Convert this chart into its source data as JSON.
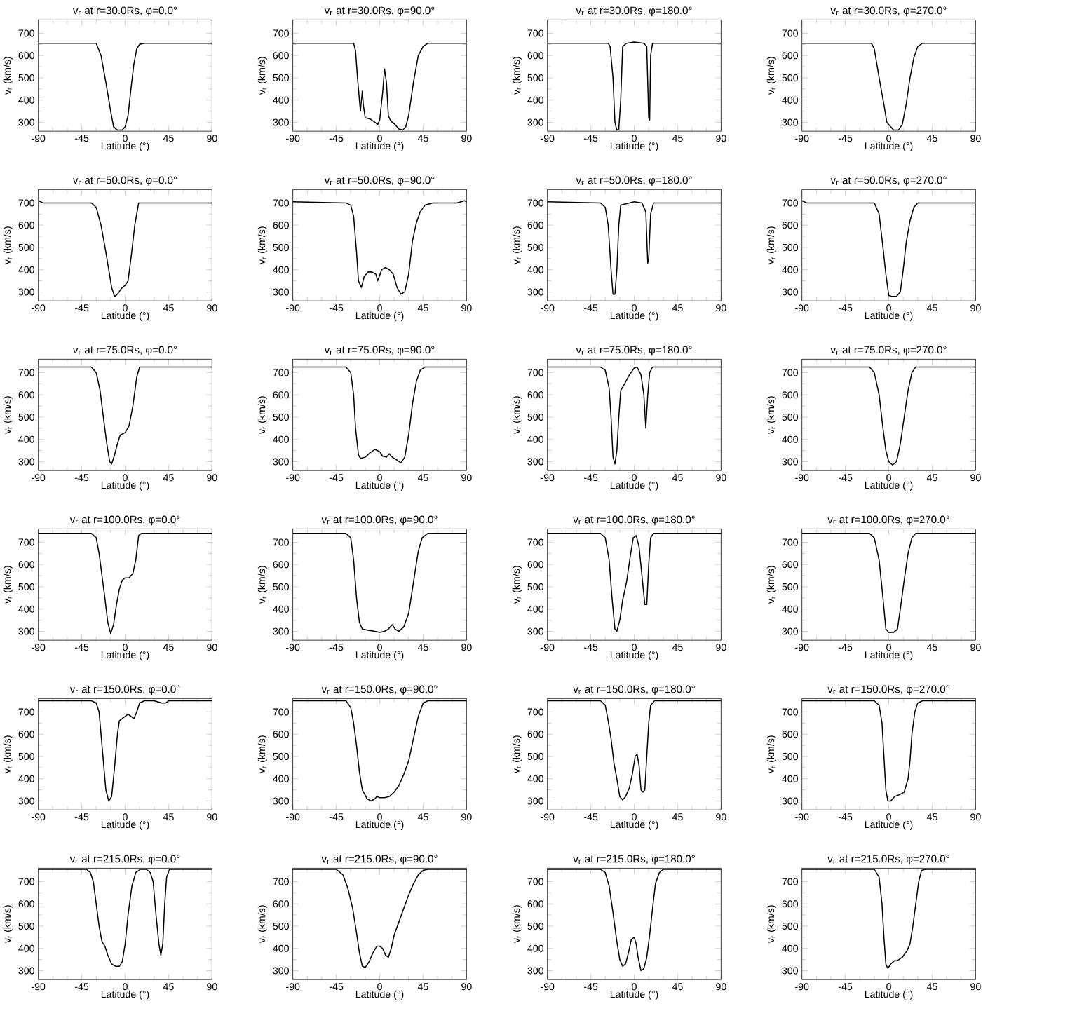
{
  "chart_data": [
    {
      "type": "line",
      "title": "v$_{r}$ at r=30.0Rs, φ=0.0°",
      "xlabel": "Latitude (°)",
      "ylabel": "v$_{r}$ (km/s)",
      "color": "#000000",
      "xlim": [
        -90,
        90
      ],
      "xticks": [
        -90,
        -45,
        0,
        45,
        90
      ],
      "ylim": [
        260,
        760
      ],
      "yticks": [
        300,
        400,
        500,
        600,
        700
      ],
      "x": [
        -90,
        -30,
        -25,
        -20,
        -15,
        -12,
        -8,
        -3,
        0,
        3,
        6,
        9,
        12,
        15,
        20,
        90
      ],
      "values": [
        655,
        655,
        600,
        480,
        350,
        280,
        265,
        265,
        280,
        330,
        450,
        560,
        630,
        650,
        655,
        655
      ]
    },
    {
      "type": "line",
      "title": "v$_{r}$ at r=30.0Rs, φ=90.0°",
      "xlabel": "Latitude (°)",
      "ylabel": "v$_{r}$ (km/s)",
      "color": "#000000",
      "xlim": [
        -90,
        90
      ],
      "xticks": [
        -90,
        -45,
        0,
        45,
        90
      ],
      "ylim": [
        260,
        760
      ],
      "yticks": [
        300,
        400,
        500,
        600,
        700
      ],
      "x": [
        -90,
        -27,
        -25,
        -23,
        -21,
        -20,
        -18,
        -17,
        -15,
        -10,
        -5,
        -2,
        0,
        3,
        5,
        7,
        9,
        11,
        13,
        16,
        20,
        24,
        27,
        30,
        35,
        40,
        45,
        50,
        90
      ],
      "values": [
        655,
        655,
        620,
        500,
        400,
        350,
        440,
        380,
        320,
        315,
        300,
        290,
        310,
        430,
        540,
        480,
        330,
        310,
        300,
        290,
        270,
        265,
        280,
        330,
        480,
        600,
        640,
        655,
        655
      ]
    },
    {
      "type": "line",
      "title": "v$_{r}$ at r=30.0Rs, φ=180.0°",
      "xlabel": "Latitude (°)",
      "ylabel": "v$_{r}$ (km/s)",
      "color": "#000000",
      "xlim": [
        -90,
        90
      ],
      "xticks": [
        -90,
        -45,
        0,
        45,
        90
      ],
      "ylim": [
        260,
        760
      ],
      "yticks": [
        300,
        400,
        500,
        600,
        700
      ],
      "x": [
        -90,
        -27,
        -25,
        -22,
        -20,
        -18,
        -16,
        -14,
        -12,
        -8,
        0,
        10,
        13,
        15,
        16,
        17,
        19,
        90
      ],
      "values": [
        655,
        655,
        640,
        500,
        300,
        265,
        270,
        400,
        640,
        655,
        660,
        655,
        640,
        320,
        310,
        600,
        655,
        655
      ]
    },
    {
      "type": "line",
      "title": "v$_{r}$ at r=30.0Rs, φ=270.0°",
      "xlabel": "Latitude (°)",
      "ylabel": "v$_{r}$ (km/s)",
      "color": "#000000",
      "xlim": [
        -90,
        90
      ],
      "xticks": [
        -90,
        -45,
        0,
        45,
        90
      ],
      "ylim": [
        260,
        760
      ],
      "yticks": [
        300,
        400,
        500,
        600,
        700
      ],
      "x": [
        -90,
        -18,
        -15,
        -10,
        -5,
        -2,
        2,
        5,
        10,
        14,
        18,
        22,
        26,
        30,
        35,
        90
      ],
      "values": [
        655,
        655,
        630,
        500,
        380,
        300,
        280,
        265,
        265,
        290,
        380,
        500,
        590,
        640,
        655,
        655
      ]
    },
    {
      "type": "line",
      "title": "v$_{r}$ at r=50.0Rs, φ=0.0°",
      "xlabel": "Latitude (°)",
      "ylabel": "v$_{r}$ (km/s)",
      "color": "#000000",
      "xlim": [
        -90,
        90
      ],
      "xticks": [
        -90,
        -45,
        0,
        45,
        90
      ],
      "ylim": [
        260,
        760
      ],
      "yticks": [
        300,
        400,
        500,
        600,
        700
      ],
      "x": [
        -90,
        -85,
        -35,
        -30,
        -25,
        -20,
        -17,
        -14,
        -11,
        -8,
        -4,
        0,
        3,
        6,
        10,
        14,
        90
      ],
      "values": [
        710,
        700,
        700,
        680,
        600,
        480,
        400,
        320,
        280,
        290,
        315,
        330,
        350,
        450,
        600,
        700,
        700
      ]
    },
    {
      "type": "line",
      "title": "v$_{r}$ at r=50.0Rs, φ=90.0°",
      "xlabel": "Latitude (°)",
      "ylabel": "v$_{r}$ (km/s)",
      "color": "#000000",
      "xlim": [
        -90,
        90
      ],
      "xticks": [
        -90,
        -45,
        0,
        45,
        90
      ],
      "ylim": [
        260,
        760
      ],
      "yticks": [
        300,
        400,
        500,
        600,
        700
      ],
      "x": [
        -90,
        -35,
        -30,
        -27,
        -24,
        -22,
        -19,
        -16,
        -12,
        -8,
        -4,
        -2,
        2,
        6,
        10,
        14,
        18,
        22,
        26,
        30,
        34,
        38,
        42,
        47,
        55,
        80,
        88,
        90
      ],
      "values": [
        705,
        700,
        690,
        640,
        480,
        350,
        320,
        370,
        390,
        390,
        380,
        350,
        400,
        410,
        400,
        380,
        320,
        290,
        300,
        380,
        530,
        610,
        660,
        690,
        700,
        700,
        710,
        705
      ]
    },
    {
      "type": "line",
      "title": "v$_{r}$ at r=50.0Rs, φ=180.0°",
      "xlabel": "Latitude (°)",
      "ylabel": "v$_{r}$ (km/s)",
      "color": "#000000",
      "xlim": [
        -90,
        90
      ],
      "xticks": [
        -90,
        -45,
        0,
        45,
        90
      ],
      "ylim": [
        260,
        760
      ],
      "yticks": [
        300,
        400,
        500,
        600,
        700
      ],
      "x": [
        -90,
        -35,
        -30,
        -27,
        -24,
        -22,
        -20,
        -18,
        -16,
        -14,
        -5,
        0,
        8,
        12,
        14,
        15,
        17,
        20,
        90
      ],
      "values": [
        705,
        700,
        680,
        600,
        400,
        290,
        290,
        400,
        600,
        690,
        700,
        705,
        700,
        660,
        430,
        450,
        650,
        700,
        700
      ]
    },
    {
      "type": "line",
      "title": "v$_{r}$ at r=50.0Rs, φ=270.0°",
      "xlabel": "Latitude (°)",
      "ylabel": "v$_{r}$ (km/s)",
      "color": "#000000",
      "xlim": [
        -90,
        90
      ],
      "xticks": [
        -90,
        -45,
        0,
        45,
        90
      ],
      "ylim": [
        260,
        760
      ],
      "yticks": [
        300,
        400,
        500,
        600,
        700
      ],
      "x": [
        -90,
        -85,
        -15,
        -10,
        -6,
        -3,
        0,
        3,
        8,
        12,
        15,
        18,
        22,
        26,
        30,
        90
      ],
      "values": [
        710,
        700,
        700,
        650,
        500,
        380,
        285,
        280,
        280,
        300,
        400,
        520,
        620,
        680,
        700,
        700
      ]
    },
    {
      "type": "line",
      "title": "v$_{r}$ at r=75.0Rs, φ=0.0°",
      "xlabel": "Latitude (°)",
      "ylabel": "v$_{r}$ (km/s)",
      "color": "#000000",
      "xlim": [
        -90,
        90
      ],
      "xticks": [
        -90,
        -45,
        0,
        45,
        90
      ],
      "ylim": [
        260,
        760
      ],
      "yticks": [
        300,
        400,
        500,
        600,
        700
      ],
      "x": [
        -90,
        -35,
        -30,
        -26,
        -22,
        -19,
        -16,
        -14,
        -11,
        -8,
        -5,
        0,
        4,
        8,
        12,
        15,
        90
      ],
      "values": [
        725,
        725,
        700,
        620,
        480,
        380,
        300,
        290,
        330,
        380,
        420,
        430,
        460,
        550,
        680,
        725,
        725
      ]
    },
    {
      "type": "line",
      "title": "v$_{r}$ at r=75.0Rs, φ=90.0°",
      "xlabel": "Latitude (°)",
      "ylabel": "v$_{r}$ (km/s)",
      "color": "#000000",
      "xlim": [
        -90,
        90
      ],
      "xticks": [
        -90,
        -45,
        0,
        45,
        90
      ],
      "ylim": [
        260,
        760
      ],
      "yticks": [
        300,
        400,
        500,
        600,
        700
      ],
      "x": [
        -90,
        -35,
        -30,
        -27,
        -25,
        -22,
        -20,
        -15,
        -10,
        -5,
        0,
        3,
        7,
        10,
        13,
        17,
        22,
        26,
        30,
        34,
        38,
        42,
        47,
        90
      ],
      "values": [
        725,
        725,
        700,
        600,
        450,
        330,
        315,
        320,
        340,
        355,
        345,
        325,
        320,
        335,
        320,
        310,
        295,
        320,
        420,
        560,
        660,
        710,
        725,
        725
      ]
    },
    {
      "type": "line",
      "title": "v$_{r}$ at r=75.0Rs, φ=180.0°",
      "xlabel": "Latitude (°)",
      "ylabel": "v$_{r}$ (km/s)",
      "color": "#000000",
      "xlim": [
        -90,
        90
      ],
      "xticks": [
        -90,
        -45,
        0,
        45,
        90
      ],
      "ylim": [
        260,
        760
      ],
      "yticks": [
        300,
        400,
        500,
        600,
        700
      ],
      "x": [
        -90,
        -35,
        -30,
        -26,
        -24,
        -22,
        -20,
        -18,
        -16,
        -14,
        -10,
        -5,
        0,
        3,
        7,
        10,
        12,
        14,
        16,
        19,
        90
      ],
      "values": [
        725,
        725,
        710,
        630,
        500,
        320,
        290,
        350,
        500,
        620,
        650,
        690,
        720,
        725,
        690,
        600,
        450,
        600,
        700,
        725,
        725
      ]
    },
    {
      "type": "line",
      "title": "v$_{r}$ at r=75.0Rs, φ=270.0°",
      "xlabel": "Latitude (°)",
      "ylabel": "v$_{r}$ (km/s)",
      "color": "#000000",
      "xlim": [
        -90,
        90
      ],
      "xticks": [
        -90,
        -45,
        0,
        45,
        90
      ],
      "ylim": [
        260,
        760
      ],
      "yticks": [
        300,
        400,
        500,
        600,
        700
      ],
      "x": [
        -90,
        -20,
        -15,
        -10,
        -6,
        -3,
        0,
        4,
        8,
        12,
        16,
        20,
        24,
        28,
        90
      ],
      "values": [
        725,
        725,
        700,
        600,
        450,
        350,
        300,
        285,
        300,
        380,
        500,
        620,
        700,
        725,
        725
      ]
    },
    {
      "type": "line",
      "title": "v$_{r}$ at r=100.0Rs, φ=0.0°",
      "xlabel": "Latitude (°)",
      "ylabel": "v$_{r}$ (km/s)",
      "color": "#000000",
      "xlim": [
        -90,
        90
      ],
      "xticks": [
        -90,
        -45,
        0,
        45,
        90
      ],
      "ylim": [
        260,
        760
      ],
      "yticks": [
        300,
        400,
        500,
        600,
        700
      ],
      "x": [
        -90,
        -35,
        -30,
        -27,
        -24,
        -21,
        -18,
        -15,
        -12,
        -9,
        -6,
        -3,
        0,
        4,
        8,
        11,
        14,
        17,
        90
      ],
      "values": [
        740,
        740,
        720,
        650,
        550,
        450,
        340,
        290,
        330,
        420,
        490,
        530,
        540,
        540,
        560,
        620,
        730,
        740,
        740
      ]
    },
    {
      "type": "line",
      "title": "v$_{r}$ at r=100.0Rs, φ=90.0°",
      "xlabel": "Latitude (°)",
      "ylabel": "v$_{r}$ (km/s)",
      "color": "#000000",
      "xlim": [
        -90,
        90
      ],
      "xticks": [
        -90,
        -45,
        0,
        45,
        90
      ],
      "ylim": [
        260,
        760
      ],
      "yticks": [
        300,
        400,
        500,
        600,
        700
      ],
      "x": [
        -90,
        -35,
        -30,
        -27,
        -24,
        -21,
        -18,
        -12,
        -5,
        0,
        5,
        9,
        13,
        16,
        20,
        25,
        30,
        35,
        40,
        44,
        50,
        90
      ],
      "values": [
        740,
        740,
        720,
        620,
        450,
        340,
        310,
        305,
        300,
        295,
        300,
        310,
        330,
        310,
        300,
        320,
        380,
        520,
        660,
        720,
        740,
        740
      ]
    },
    {
      "type": "line",
      "title": "v$_{r}$ at r=100.0Rs, φ=180.0°",
      "xlabel": "Latitude (°)",
      "ylabel": "v$_{r}$ (km/s)",
      "color": "#000000",
      "xlim": [
        -90,
        90
      ],
      "xticks": [
        -90,
        -45,
        0,
        45,
        90
      ],
      "ylim": [
        260,
        760
      ],
      "yticks": [
        300,
        400,
        500,
        600,
        700
      ],
      "x": [
        -90,
        -35,
        -30,
        -26,
        -23,
        -20,
        -18,
        -15,
        -12,
        -8,
        -4,
        -1,
        2,
        5,
        8,
        11,
        13,
        15,
        17,
        20,
        90
      ],
      "values": [
        740,
        740,
        720,
        620,
        450,
        310,
        300,
        350,
        440,
        520,
        640,
        720,
        730,
        680,
        550,
        420,
        420,
        600,
        720,
        740,
        740
      ]
    },
    {
      "type": "line",
      "title": "v$_{r}$ at r=100.0Rs, φ=270.0°",
      "xlabel": "Latitude (°)",
      "ylabel": "v$_{r}$ (km/s)",
      "color": "#000000",
      "xlim": [
        -90,
        90
      ],
      "xticks": [
        -90,
        -45,
        0,
        45,
        90
      ],
      "ylim": [
        260,
        760
      ],
      "yticks": [
        300,
        400,
        500,
        600,
        700
      ],
      "x": [
        -90,
        -20,
        -15,
        -10,
        -6,
        -3,
        0,
        5,
        9,
        12,
        16,
        20,
        24,
        28,
        90
      ],
      "values": [
        740,
        740,
        720,
        620,
        450,
        310,
        295,
        295,
        310,
        400,
        530,
        650,
        720,
        740,
        740
      ]
    },
    {
      "type": "line",
      "title": "v$_{r}$ at r=150.0Rs, φ=0.0°",
      "xlabel": "Latitude (°)",
      "ylabel": "v$_{r}$ (km/s)",
      "color": "#000000",
      "xlim": [
        -90,
        90
      ],
      "xticks": [
        -90,
        -45,
        0,
        45,
        90
      ],
      "ylim": [
        260,
        760
      ],
      "yticks": [
        300,
        400,
        500,
        600,
        700
      ],
      "x": [
        -90,
        -35,
        -30,
        -27,
        -25,
        -22,
        -20,
        -17,
        -14,
        -11,
        -8,
        -6,
        -3,
        0,
        3,
        6,
        9,
        12,
        15,
        20,
        30,
        38,
        42,
        45,
        90
      ],
      "values": [
        750,
        750,
        740,
        700,
        600,
        450,
        350,
        300,
        320,
        450,
        600,
        660,
        670,
        680,
        690,
        680,
        670,
        700,
        740,
        750,
        750,
        740,
        740,
        750,
        750
      ]
    },
    {
      "type": "line",
      "title": "v$_{r}$ at r=150.0Rs, φ=90.0°",
      "xlabel": "Latitude (°)",
      "ylabel": "v$_{r}$ (km/s)",
      "color": "#000000",
      "xlim": [
        -90,
        90
      ],
      "xticks": [
        -90,
        -45,
        0,
        45,
        90
      ],
      "ylim": [
        260,
        760
      ],
      "yticks": [
        300,
        400,
        500,
        600,
        700
      ],
      "x": [
        -90,
        -35,
        -30,
        -27,
        -24,
        -21,
        -18,
        -13,
        -9,
        -5,
        -3,
        0,
        5,
        10,
        15,
        20,
        25,
        30,
        35,
        40,
        45,
        50,
        90
      ],
      "values": [
        750,
        750,
        720,
        650,
        550,
        430,
        350,
        310,
        300,
        310,
        320,
        315,
        315,
        320,
        340,
        370,
        420,
        480,
        580,
        680,
        740,
        750,
        750
      ]
    },
    {
      "type": "line",
      "title": "v$_{r}$ at r=150.0Rs, φ=180.0°",
      "xlabel": "Latitude (°)",
      "ylabel": "v$_{r}$ (km/s)",
      "color": "#000000",
      "xlim": [
        -90,
        90
      ],
      "xticks": [
        -90,
        -45,
        0,
        45,
        90
      ],
      "ylim": [
        260,
        760
      ],
      "yticks": [
        300,
        400,
        500,
        600,
        700
      ],
      "x": [
        -90,
        -35,
        -30,
        -27,
        -24,
        -21,
        -18,
        -15,
        -12,
        -9,
        -5,
        -2,
        1,
        3,
        5,
        7,
        9,
        11,
        13,
        15,
        17,
        21,
        90
      ],
      "values": [
        750,
        750,
        730,
        660,
        580,
        470,
        400,
        320,
        305,
        320,
        360,
        420,
        500,
        510,
        460,
        350,
        340,
        350,
        500,
        650,
        730,
        750,
        750
      ]
    },
    {
      "type": "line",
      "title": "v$_{r}$ at r=150.0Rs, φ=270.0°",
      "xlabel": "Latitude (°)",
      "ylabel": "v$_{r}$ (km/s)",
      "color": "#000000",
      "xlim": [
        -90,
        90
      ],
      "xticks": [
        -90,
        -45,
        0,
        45,
        90
      ],
      "ylim": [
        260,
        760
      ],
      "yticks": [
        300,
        400,
        500,
        600,
        700
      ],
      "x": [
        -90,
        -15,
        -10,
        -7,
        -5,
        -3,
        -1,
        2,
        6,
        12,
        16,
        20,
        22,
        24,
        27,
        30,
        35,
        90
      ],
      "values": [
        750,
        750,
        730,
        650,
        500,
        350,
        300,
        300,
        320,
        330,
        340,
        400,
        480,
        600,
        700,
        740,
        750,
        750
      ]
    },
    {
      "type": "line",
      "title": "v$_{r}$ at r=215.0Rs, φ=0.0°",
      "xlabel": "Latitude (°)",
      "ylabel": "v$_{r}$ (km/s)",
      "color": "#000000",
      "xlim": [
        -90,
        90
      ],
      "xticks": [
        -90,
        -45,
        0,
        45,
        90
      ],
      "ylim": [
        260,
        760
      ],
      "yticks": [
        300,
        400,
        500,
        600,
        700
      ],
      "x": [
        -90,
        -40,
        -36,
        -33,
        -30,
        -27,
        -24,
        -21,
        -18,
        -14,
        -10,
        -6,
        -3,
        0,
        3,
        7,
        11,
        16,
        22,
        26,
        29,
        32,
        35,
        37,
        39,
        41,
        43,
        46,
        90
      ],
      "values": [
        755,
        755,
        740,
        700,
        600,
        500,
        430,
        410,
        370,
        330,
        320,
        320,
        340,
        420,
        550,
        680,
        740,
        755,
        755,
        740,
        700,
        550,
        420,
        370,
        420,
        600,
        720,
        755,
        755
      ]
    },
    {
      "type": "line",
      "title": "v$_{r}$ at r=215.0Rs, φ=90.0°",
      "xlabel": "Latitude (°)",
      "ylabel": "v$_{r}$ (km/s)",
      "color": "#000000",
      "xlim": [
        -90,
        90
      ],
      "xticks": [
        -90,
        -45,
        0,
        45,
        90
      ],
      "ylim": [
        260,
        760
      ],
      "yticks": [
        300,
        400,
        500,
        600,
        700
      ],
      "x": [
        -90,
        -45,
        -38,
        -33,
        -28,
        -24,
        -21,
        -18,
        -15,
        -11,
        -7,
        -3,
        0,
        3,
        6,
        9,
        12,
        15,
        20,
        25,
        30,
        35,
        40,
        45,
        50,
        90
      ],
      "values": [
        755,
        755,
        730,
        670,
        580,
        470,
        380,
        320,
        315,
        340,
        380,
        410,
        410,
        400,
        370,
        360,
        400,
        460,
        520,
        580,
        640,
        690,
        730,
        750,
        755,
        755
      ]
    },
    {
      "type": "line",
      "title": "v$_{r}$ at r=215.0Rs, φ=180.0°",
      "xlabel": "Latitude (°)",
      "ylabel": "v$_{r}$ (km/s)",
      "color": "#000000",
      "xlim": [
        -90,
        90
      ],
      "xticks": [
        -90,
        -45,
        0,
        45,
        90
      ],
      "ylim": [
        260,
        760
      ],
      "yticks": [
        300,
        400,
        500,
        600,
        700
      ],
      "x": [
        -90,
        -35,
        -30,
        -26,
        -22,
        -18,
        -15,
        -12,
        -9,
        -6,
        -3,
        0,
        2,
        4,
        7,
        10,
        13,
        16,
        19,
        22,
        26,
        30,
        90
      ],
      "values": [
        755,
        755,
        740,
        680,
        560,
        430,
        350,
        320,
        330,
        380,
        440,
        450,
        420,
        360,
        300,
        310,
        360,
        460,
        580,
        690,
        740,
        755,
        755
      ]
    },
    {
      "type": "line",
      "title": "v$_{r}$ at r=215.0Rs, φ=270.0°",
      "xlabel": "Latitude (°)",
      "ylabel": "v$_{r}$ (km/s)",
      "color": "#000000",
      "xlim": [
        -90,
        90
      ],
      "xticks": [
        -90,
        -45,
        0,
        45,
        90
      ],
      "ylim": [
        260,
        760
      ],
      "yticks": [
        300,
        400,
        500,
        600,
        700
      ],
      "x": [
        -90,
        -15,
        -10,
        -7,
        -5,
        -3,
        -1,
        2,
        6,
        9,
        14,
        19,
        22,
        25,
        28,
        31,
        34,
        38,
        90
      ],
      "values": [
        755,
        755,
        720,
        600,
        450,
        330,
        310,
        330,
        345,
        345,
        360,
        390,
        420,
        500,
        600,
        700,
        750,
        755,
        755
      ]
    }
  ]
}
